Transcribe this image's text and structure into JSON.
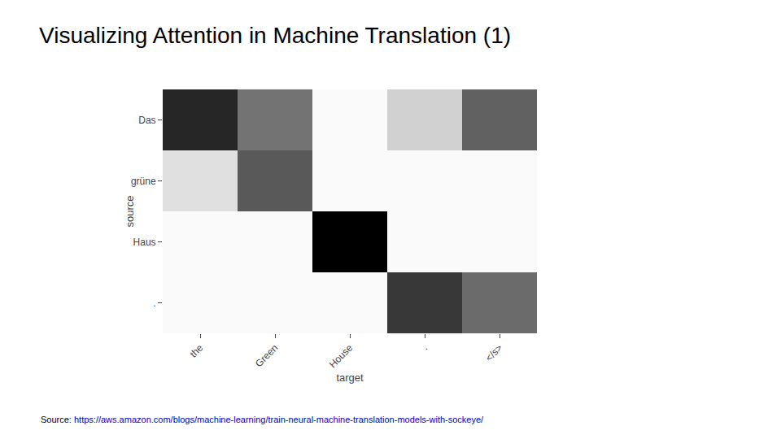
{
  "chart_data": {
    "type": "heatmap",
    "title": "Visualizing Attention in Machine Translation (1)",
    "x_label": "target",
    "y_label": "source",
    "x": [
      "the",
      "Green",
      "House",
      ".",
      "</s>"
    ],
    "categories": [
      "Das",
      "grüne",
      "Haus",
      "."
    ],
    "cells": [
      [
        0.85,
        0.55,
        0.02,
        0.18,
        0.62
      ],
      [
        0.12,
        0.65,
        0.02,
        0.02,
        0.02
      ],
      [
        0.02,
        0.02,
        1.0,
        0.02,
        0.02
      ],
      [
        0.02,
        0.02,
        0.02,
        0.78,
        0.58
      ]
    ],
    "zlim": [
      0,
      1
    ],
    "colors": [
      "#ffffff",
      "#000000"
    ],
    "grid": false,
    "annotations": [
      {
        "text": "Source:",
        "color": "#000000"
      },
      {
        "text": "https://aws.amazon.com/blogs/machine-learning/train-neural-machine-translation-models-with-sockeye/",
        "color": "#0000cc"
      }
    ]
  }
}
